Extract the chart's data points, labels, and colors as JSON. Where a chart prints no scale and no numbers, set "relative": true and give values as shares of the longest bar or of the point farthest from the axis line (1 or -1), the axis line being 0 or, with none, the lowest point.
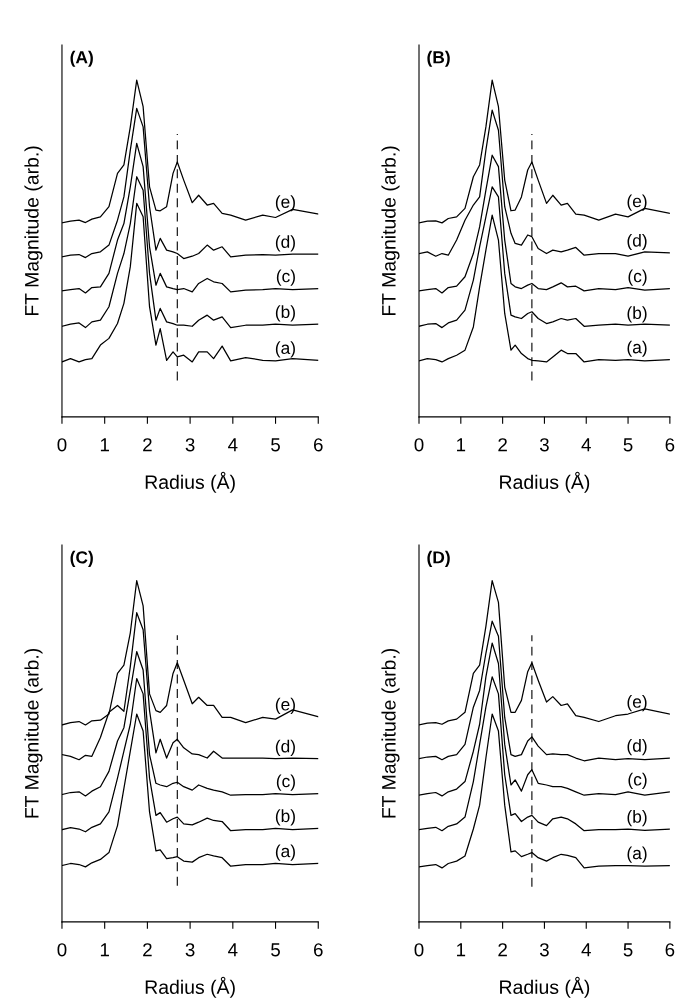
{
  "chart_data": [
    {
      "type": "line",
      "title": "(A)",
      "xlabel": "Radius (Å)",
      "ylabel": "FT Magnitude (arb.)",
      "relative": true,
      "xlim": [
        0,
        6
      ],
      "xticks": [
        0,
        1,
        2,
        3,
        4,
        5,
        6
      ],
      "x": [
        0,
        0.2,
        0.4,
        0.55,
        0.7,
        0.9,
        1.1,
        1.3,
        1.45,
        1.6,
        1.75,
        1.9,
        2.05,
        2.2,
        2.3,
        2.45,
        2.6,
        2.7,
        2.85,
        3.05,
        3.2,
        3.4,
        3.55,
        3.75,
        3.95,
        4.3,
        4.7,
        5.0,
        5.4,
        6.0
      ],
      "ref_lines": [
        {
          "axis": "x",
          "value": 2.7,
          "color": "#000000",
          "line_style": "dashed"
        }
      ],
      "series": [
        {
          "name": "(e)",
          "color": "#000000",
          "values": [
            0.576,
            0.581,
            0.584,
            0.577,
            0.587,
            0.594,
            0.624,
            0.723,
            0.748,
            0.861,
            1.0,
            0.921,
            0.683,
            0.614,
            0.612,
            0.624,
            0.723,
            0.757,
            0.703,
            0.636,
            0.658,
            0.629,
            0.634,
            0.604,
            0.599,
            0.584,
            0.599,
            0.592,
            0.616,
            0.602
          ]
        },
        {
          "name": "(d)",
          "color": "#000000",
          "values": [
            0.475,
            0.48,
            0.482,
            0.473,
            0.485,
            0.49,
            0.51,
            0.584,
            0.653,
            0.792,
            0.916,
            0.861,
            0.624,
            0.495,
            0.53,
            0.495,
            0.49,
            0.485,
            0.47,
            0.477,
            0.485,
            0.51,
            0.495,
            0.505,
            0.475,
            0.48,
            0.482,
            0.48,
            0.483,
            0.483
          ]
        },
        {
          "name": "(c)",
          "color": "#000000",
          "values": [
            0.374,
            0.378,
            0.381,
            0.368,
            0.384,
            0.386,
            0.426,
            0.525,
            0.574,
            0.683,
            0.812,
            0.743,
            0.505,
            0.391,
            0.426,
            0.386,
            0.381,
            0.378,
            0.381,
            0.371,
            0.396,
            0.411,
            0.401,
            0.396,
            0.371,
            0.376,
            0.378,
            0.381,
            0.378,
            0.381
          ]
        },
        {
          "name": "(b)",
          "color": "#000000",
          "values": [
            0.269,
            0.275,
            0.279,
            0.265,
            0.282,
            0.287,
            0.327,
            0.426,
            0.485,
            0.574,
            0.713,
            0.673,
            0.426,
            0.287,
            0.322,
            0.282,
            0.277,
            0.272,
            0.272,
            0.269,
            0.287,
            0.302,
            0.287,
            0.297,
            0.265,
            0.272,
            0.272,
            0.275,
            0.272,
            0.275
          ]
        },
        {
          "name": "(a)",
          "color": "#000000",
          "values": [
            0.163,
            0.173,
            0.163,
            0.17,
            0.173,
            0.213,
            0.233,
            0.277,
            0.337,
            0.446,
            0.634,
            0.594,
            0.327,
            0.213,
            0.262,
            0.168,
            0.193,
            0.178,
            0.183,
            0.163,
            0.193,
            0.193,
            0.173,
            0.21,
            0.166,
            0.176,
            0.168,
            0.166,
            0.173,
            0.168
          ]
        }
      ]
    },
    {
      "type": "line",
      "title": "(B)",
      "xlabel": "Radius (Å)",
      "ylabel": "FT Magnitude (arb.)",
      "relative": true,
      "xlim": [
        0,
        6
      ],
      "xticks": [
        0,
        1,
        2,
        3,
        4,
        5,
        6
      ],
      "x": [
        0,
        0.2,
        0.4,
        0.55,
        0.7,
        0.9,
        1.1,
        1.3,
        1.45,
        1.6,
        1.75,
        1.9,
        2.05,
        2.2,
        2.3,
        2.45,
        2.6,
        2.7,
        2.85,
        3.05,
        3.2,
        3.4,
        3.55,
        3.75,
        3.95,
        4.3,
        4.7,
        5.0,
        5.4,
        6.0
      ],
      "ref_lines": [
        {
          "axis": "x",
          "value": 2.7,
          "color": "#000000",
          "line_style": "dashed"
        }
      ],
      "series": [
        {
          "name": "(e)",
          "color": "#000000",
          "values": [
            0.576,
            0.581,
            0.582,
            0.576,
            0.589,
            0.594,
            0.619,
            0.713,
            0.748,
            0.861,
            1.0,
            0.921,
            0.703,
            0.612,
            0.614,
            0.653,
            0.733,
            0.757,
            0.703,
            0.634,
            0.658,
            0.629,
            0.634,
            0.602,
            0.599,
            0.584,
            0.602,
            0.594,
            0.619,
            0.604
          ]
        },
        {
          "name": "(d)",
          "color": "#000000",
          "values": [
            0.485,
            0.49,
            0.477,
            0.485,
            0.48,
            0.525,
            0.584,
            0.629,
            0.653,
            0.792,
            0.911,
            0.851,
            0.624,
            0.545,
            0.515,
            0.51,
            0.54,
            0.535,
            0.5,
            0.485,
            0.495,
            0.49,
            0.495,
            0.503,
            0.48,
            0.485,
            0.485,
            0.477,
            0.49,
            0.487
          ]
        },
        {
          "name": "(c)",
          "color": "#000000",
          "values": [
            0.374,
            0.378,
            0.381,
            0.368,
            0.384,
            0.388,
            0.416,
            0.485,
            0.564,
            0.673,
            0.777,
            0.743,
            0.525,
            0.396,
            0.386,
            0.381,
            0.391,
            0.396,
            0.381,
            0.378,
            0.386,
            0.398,
            0.386,
            0.388,
            0.374,
            0.381,
            0.378,
            0.384,
            0.376,
            0.381
          ]
        },
        {
          "name": "(b)",
          "color": "#000000",
          "values": [
            0.269,
            0.275,
            0.277,
            0.265,
            0.279,
            0.287,
            0.317,
            0.406,
            0.505,
            0.594,
            0.683,
            0.653,
            0.426,
            0.302,
            0.297,
            0.292,
            0.307,
            0.312,
            0.292,
            0.277,
            0.282,
            0.292,
            0.287,
            0.292,
            0.269,
            0.272,
            0.275,
            0.272,
            0.275,
            0.272
          ]
        },
        {
          "name": "(a)",
          "color": "#000000",
          "values": [
            0.166,
            0.173,
            0.17,
            0.163,
            0.173,
            0.183,
            0.198,
            0.267,
            0.386,
            0.495,
            0.599,
            0.525,
            0.307,
            0.198,
            0.213,
            0.188,
            0.173,
            0.168,
            0.166,
            0.163,
            0.178,
            0.198,
            0.188,
            0.188,
            0.163,
            0.17,
            0.168,
            0.17,
            0.166,
            0.17
          ]
        }
      ]
    },
    {
      "type": "line",
      "title": "(C)",
      "xlabel": "Radius (Å)",
      "ylabel": "FT Magnitude (arb.)",
      "relative": true,
      "xlim": [
        0,
        6
      ],
      "xticks": [
        0,
        1,
        2,
        3,
        4,
        5,
        6
      ],
      "x": [
        0,
        0.2,
        0.4,
        0.55,
        0.7,
        0.9,
        1.1,
        1.3,
        1.45,
        1.6,
        1.75,
        1.9,
        2.05,
        2.2,
        2.3,
        2.45,
        2.6,
        2.7,
        2.85,
        3.05,
        3.2,
        3.4,
        3.55,
        3.75,
        3.95,
        4.3,
        4.7,
        5.0,
        5.4,
        6.0
      ],
      "ref_lines": [
        {
          "axis": "x",
          "value": 2.7,
          "color": "#000000",
          "line_style": "dashed"
        }
      ],
      "series": [
        {
          "name": "(e)",
          "color": "#000000",
          "values": [
            0.577,
            0.584,
            0.587,
            0.577,
            0.589,
            0.591,
            0.609,
            0.728,
            0.752,
            0.847,
            1.0,
            0.926,
            0.668,
            0.619,
            0.614,
            0.634,
            0.728,
            0.759,
            0.708,
            0.639,
            0.658,
            0.634,
            0.634,
            0.599,
            0.599,
            0.584,
            0.599,
            0.594,
            0.621,
            0.601
          ]
        },
        {
          "name": "(d)",
          "color": "#000000",
          "values": [
            0.49,
            0.485,
            0.475,
            0.488,
            0.485,
            0.54,
            0.614,
            0.634,
            0.617,
            0.748,
            0.906,
            0.856,
            0.619,
            0.495,
            0.535,
            0.48,
            0.525,
            0.535,
            0.51,
            0.492,
            0.49,
            0.48,
            0.5,
            0.48,
            0.48,
            0.48,
            0.48,
            0.478,
            0.48,
            0.478
          ]
        },
        {
          "name": "(c)",
          "color": "#000000",
          "values": [
            0.373,
            0.379,
            0.381,
            0.369,
            0.383,
            0.396,
            0.441,
            0.53,
            0.569,
            0.678,
            0.792,
            0.738,
            0.49,
            0.406,
            0.401,
            0.396,
            0.406,
            0.409,
            0.396,
            0.386,
            0.401,
            0.391,
            0.386,
            0.381,
            0.371,
            0.373,
            0.373,
            0.376,
            0.373,
            0.376
          ]
        },
        {
          "name": "(b)",
          "color": "#000000",
          "values": [
            0.27,
            0.276,
            0.272,
            0.264,
            0.277,
            0.287,
            0.322,
            0.421,
            0.5,
            0.579,
            0.713,
            0.668,
            0.421,
            0.312,
            0.32,
            0.292,
            0.302,
            0.307,
            0.287,
            0.284,
            0.292,
            0.304,
            0.297,
            0.294,
            0.267,
            0.27,
            0.27,
            0.274,
            0.27,
            0.274
          ]
        },
        {
          "name": "(a)",
          "color": "#000000",
          "values": [
            0.165,
            0.171,
            0.168,
            0.161,
            0.173,
            0.183,
            0.203,
            0.282,
            0.391,
            0.5,
            0.609,
            0.559,
            0.322,
            0.208,
            0.211,
            0.185,
            0.188,
            0.191,
            0.178,
            0.175,
            0.188,
            0.198,
            0.193,
            0.188,
            0.163,
            0.168,
            0.168,
            0.171,
            0.168,
            0.171
          ]
        }
      ]
    },
    {
      "type": "line",
      "title": "(D)",
      "xlabel": "Radius (Å)",
      "ylabel": "FT Magnitude (arb.)",
      "relative": true,
      "xlim": [
        0,
        6
      ],
      "xticks": [
        0,
        1,
        2,
        3,
        4,
        5,
        6
      ],
      "x": [
        0,
        0.2,
        0.4,
        0.55,
        0.7,
        0.9,
        1.1,
        1.3,
        1.45,
        1.6,
        1.75,
        1.9,
        2.05,
        2.2,
        2.3,
        2.45,
        2.6,
        2.7,
        2.85,
        3.05,
        3.2,
        3.4,
        3.55,
        3.75,
        3.95,
        4.3,
        4.7,
        5.0,
        5.4,
        6.0
      ],
      "ref_lines": [
        {
          "axis": "x",
          "value": 2.7,
          "color": "#000000",
          "line_style": "dashed"
        }
      ],
      "series": [
        {
          "name": "(e)",
          "color": "#000000",
          "values": [
            0.577,
            0.582,
            0.584,
            0.579,
            0.589,
            0.594,
            0.614,
            0.728,
            0.752,
            0.866,
            1.0,
            0.936,
            0.688,
            0.614,
            0.614,
            0.649,
            0.733,
            0.759,
            0.708,
            0.644,
            0.66,
            0.634,
            0.639,
            0.604,
            0.599,
            0.587,
            0.604,
            0.609,
            0.624,
            0.609
          ]
        },
        {
          "name": "(d)",
          "color": "#000000",
          "values": [
            0.478,
            0.483,
            0.485,
            0.475,
            0.485,
            0.49,
            0.52,
            0.629,
            0.678,
            0.787,
            0.881,
            0.837,
            0.599,
            0.49,
            0.485,
            0.49,
            0.53,
            0.542,
            0.515,
            0.49,
            0.492,
            0.49,
            0.49,
            0.48,
            0.472,
            0.48,
            0.475,
            0.478,
            0.475,
            0.48
          ]
        },
        {
          "name": "(c)",
          "color": "#000000",
          "values": [
            0.371,
            0.376,
            0.379,
            0.369,
            0.381,
            0.389,
            0.411,
            0.5,
            0.579,
            0.718,
            0.817,
            0.757,
            0.52,
            0.401,
            0.416,
            0.383,
            0.431,
            0.446,
            0.406,
            0.401,
            0.396,
            0.396,
            0.391,
            0.381,
            0.371,
            0.376,
            0.373,
            0.381,
            0.371,
            0.381
          ]
        },
        {
          "name": "(b)",
          "color": "#000000",
          "values": [
            0.27,
            0.274,
            0.277,
            0.267,
            0.28,
            0.287,
            0.307,
            0.411,
            0.52,
            0.629,
            0.718,
            0.668,
            0.431,
            0.312,
            0.317,
            0.294,
            0.307,
            0.312,
            0.292,
            0.282,
            0.302,
            0.307,
            0.302,
            0.287,
            0.267,
            0.27,
            0.27,
            0.272,
            0.268,
            0.272
          ]
        },
        {
          "name": "(a)",
          "color": "#000000",
          "values": [
            0.161,
            0.165,
            0.168,
            0.158,
            0.171,
            0.178,
            0.193,
            0.272,
            0.342,
            0.48,
            0.609,
            0.559,
            0.342,
            0.205,
            0.208,
            0.191,
            0.198,
            0.203,
            0.188,
            0.178,
            0.188,
            0.198,
            0.195,
            0.188,
            0.158,
            0.163,
            0.165,
            0.165,
            0.163,
            0.165
          ]
        }
      ]
    }
  ]
}
